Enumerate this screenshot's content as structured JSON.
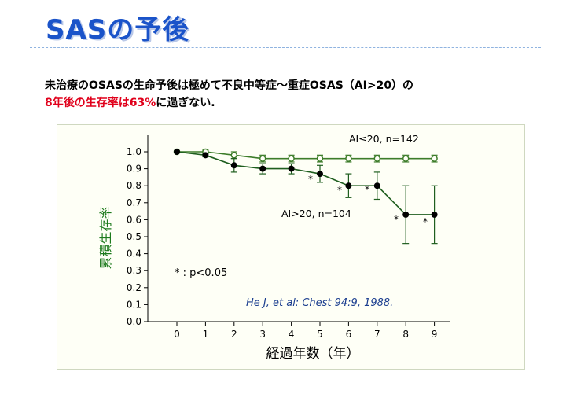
{
  "slide": {
    "title": "SASの予後",
    "line1": "未治療のOSASの生命予後は極めて不良中等症～重症OSAS（AI>20）の",
    "line2_red": "8年後の生存率は63%",
    "line2_rest": "に過ぎない."
  },
  "chart_data": {
    "type": "line",
    "xlabel": "経過年数（年）",
    "ylabel": "累積生存率",
    "categories": [
      "0",
      "1",
      "2",
      "3",
      "4",
      "5",
      "6",
      "7",
      "8",
      "9"
    ],
    "yticks": [
      "0.0",
      "0.1",
      "0.2",
      "0.3",
      "0.4",
      "0.5",
      "0.6",
      "0.7",
      "0.8",
      "0.9",
      "1.0"
    ],
    "ylim": [
      0,
      1.0
    ],
    "series": [
      {
        "name": "AI≤20, n=142",
        "marker": "open",
        "x": [
          0,
          1,
          2,
          3,
          4,
          5,
          6,
          7,
          8,
          9
        ],
        "values": [
          1.0,
          1.0,
          0.98,
          0.96,
          0.96,
          0.96,
          0.96,
          0.96,
          0.96,
          0.96
        ],
        "err": [
          0,
          0.01,
          0.02,
          0.02,
          0.02,
          0.02,
          0.02,
          0.02,
          0.02,
          0.02
        ]
      },
      {
        "name": "AI>20, n=104",
        "marker": "filled",
        "x": [
          0,
          1,
          2,
          3,
          4,
          5,
          6,
          7,
          8,
          9
        ],
        "values": [
          1.0,
          0.98,
          0.92,
          0.9,
          0.9,
          0.87,
          0.8,
          0.8,
          0.63,
          0.63
        ],
        "err": [
          0,
          0.01,
          0.04,
          0.03,
          0.03,
          0.05,
          0.07,
          0.08,
          0.17,
          0.17
        ]
      }
    ],
    "significance_marker": "*",
    "significance_at": [
      5,
      6,
      7,
      8,
      9
    ],
    "legend_note": "* : p<0.05",
    "citation": "He J, et al: Chest 94:9, 1988."
  }
}
